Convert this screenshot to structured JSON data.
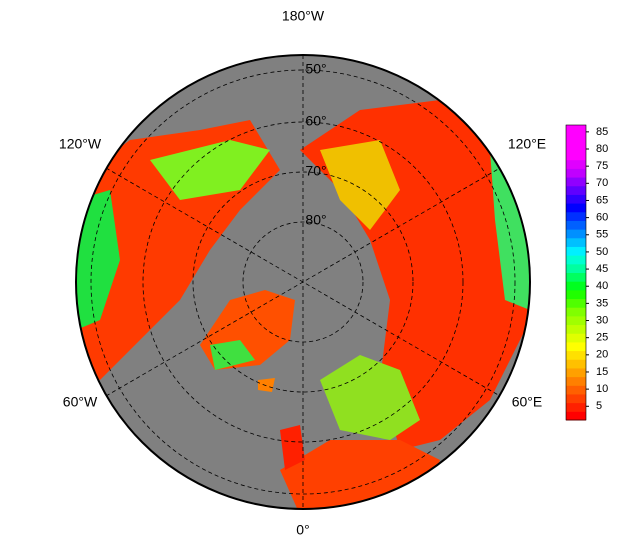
{
  "map": {
    "longitude_labels": {
      "top": "180°W",
      "upper_left": "120°W",
      "upper_right": "120°E",
      "lower_left": "60°W",
      "lower_right": "60°E",
      "bottom": "0°"
    },
    "latitude_labels": [
      "50°",
      "60°",
      "70°",
      "80°"
    ],
    "colorbar": {
      "lim": [
        1,
        87
      ],
      "ticks": [
        5,
        10,
        15,
        20,
        25,
        30,
        35,
        40,
        45,
        50,
        55,
        60,
        65,
        70,
        75,
        80,
        85
      ],
      "colors": [
        "#ff0000",
        "#ff2000",
        "#ff4000",
        "#ff6000",
        "#ff8000",
        "#ffa000",
        "#ffc000",
        "#ffe000",
        "#ffff00",
        "#e0ff00",
        "#c0ff00",
        "#a0ff00",
        "#80ff00",
        "#50ff00",
        "#20ff00",
        "#00ff20",
        "#00ff60",
        "#00ffa0",
        "#00ffd0",
        "#00f0ff",
        "#00c0ff",
        "#0090ff",
        "#0060ff",
        "#0030ff",
        "#0000ff",
        "#3000ff",
        "#6000ff",
        "#9000ff",
        "#c000ff",
        "#e000ff",
        "#ff00ff",
        "#ff00ff",
        "#ff00ff",
        "#ff00ff"
      ]
    }
  }
}
